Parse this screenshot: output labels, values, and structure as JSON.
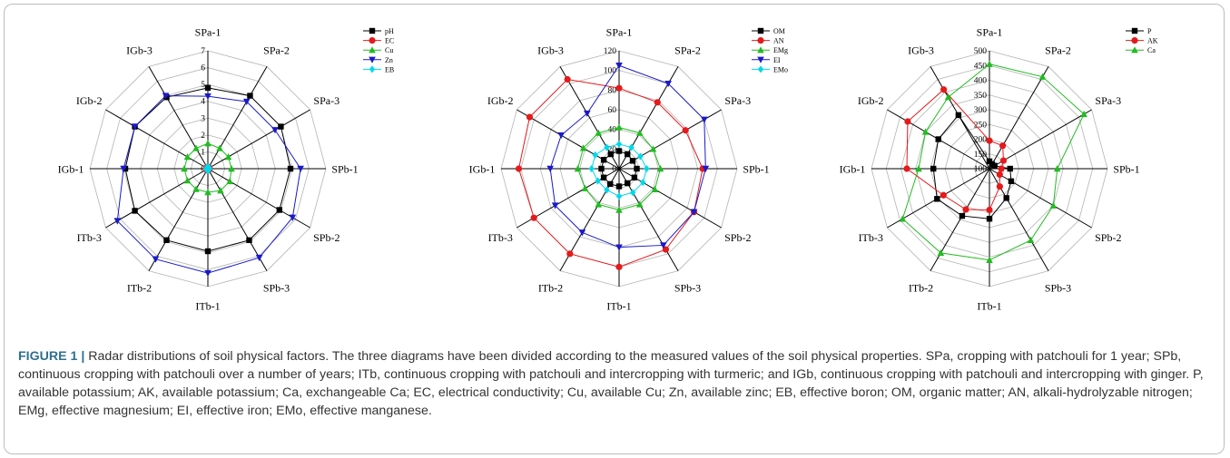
{
  "chart_data": [
    {
      "type": "radar",
      "categories": [
        "SPa-1",
        "SPa-2",
        "SPa-3",
        "SPb-1",
        "SPb-2",
        "SPb-3",
        "ITb-1",
        "ITb-2",
        "ITb-3",
        "IGb-1",
        "IGb-2",
        "IGb-3"
      ],
      "rlim": [
        0,
        7
      ],
      "ticks": [
        "0",
        "1",
        "2",
        "3",
        "4",
        "5",
        "6",
        "7"
      ],
      "legend": "top-right",
      "series": [
        {
          "name": "pH",
          "color": "#000000",
          "marker": "square",
          "values": [
            4.8,
            5.0,
            5.0,
            4.9,
            4.9,
            4.9,
            4.9,
            4.9,
            5.0,
            4.9,
            5.0,
            4.9
          ]
        },
        {
          "name": "EC",
          "color": "#e41a1c",
          "marker": "circle",
          "values": [
            0.1,
            0.1,
            0.1,
            0.1,
            0.1,
            0.1,
            0.1,
            0.1,
            0.1,
            0.1,
            0.1,
            0.1
          ]
        },
        {
          "name": "Cu",
          "color": "#22bb22",
          "marker": "triangle",
          "values": [
            1.5,
            1.4,
            1.4,
            1.4,
            1.5,
            1.5,
            1.4,
            1.4,
            1.4,
            1.4,
            1.4,
            1.4
          ]
        },
        {
          "name": "Zn",
          "color": "#1a1ac8",
          "marker": "triangle-down",
          "values": [
            4.3,
            4.6,
            4.6,
            5.5,
            5.8,
            6.1,
            6.2,
            6.2,
            6.2,
            5.0,
            5.0,
            5.0
          ]
        },
        {
          "name": "EB",
          "color": "#00d8e8",
          "marker": "diamond",
          "values": [
            0.1,
            0.1,
            0.1,
            0.1,
            0.1,
            0.1,
            0.1,
            0.1,
            0.1,
            0.1,
            0.1,
            0.1
          ]
        }
      ]
    },
    {
      "type": "radar",
      "categories": [
        "SPa-1",
        "SPa-2",
        "SPa-3",
        "SPb-1",
        "SPb-2",
        "SPb-3",
        "ITb-1",
        "ITb-2",
        "ITb-3",
        "IGb-1",
        "IGb-2",
        "IGb-3"
      ],
      "rlim": [
        0,
        120
      ],
      "ticks": [
        "0",
        "20",
        "40",
        "60",
        "80",
        "100",
        "120"
      ],
      "legend": "top-right",
      "series": [
        {
          "name": "OM",
          "color": "#000000",
          "marker": "square",
          "values": [
            18,
            17,
            16,
            18,
            18,
            17,
            18,
            18,
            18,
            18,
            18,
            17
          ]
        },
        {
          "name": "AN",
          "color": "#e41a1c",
          "marker": "circle",
          "values": [
            82,
            78,
            78,
            85,
            88,
            95,
            100,
            100,
            100,
            102,
            105,
            105
          ]
        },
        {
          "name": "EMg",
          "color": "#22bb22",
          "marker": "triangle",
          "values": [
            42,
            42,
            40,
            42,
            42,
            42,
            42,
            42,
            40,
            42,
            42,
            42
          ]
        },
        {
          "name": "EI",
          "color": "#1a1ac8",
          "marker": "triangle-down",
          "values": [
            105,
            100,
            100,
            88,
            88,
            90,
            80,
            75,
            75,
            70,
            68,
            65
          ]
        },
        {
          "name": "EMo",
          "color": "#00d8e8",
          "marker": "diamond",
          "values": [
            25,
            25,
            25,
            28,
            28,
            28,
            28,
            25,
            25,
            28,
            28,
            25
          ]
        }
      ]
    },
    {
      "type": "radar",
      "categories": [
        "SPa-1",
        "SPa-2",
        "SPa-3",
        "SPb-1",
        "SPb-2",
        "SPb-3",
        "ITb-1",
        "ITb-2",
        "ITb-3",
        "IGb-1",
        "IGb-2",
        "IGb-3"
      ],
      "rlim": [
        100,
        500
      ],
      "ticks": [
        "100",
        "150",
        "200",
        "250",
        "300",
        "350",
        "400",
        "450",
        "500"
      ],
      "legend": "top-right",
      "series": [
        {
          "name": "P",
          "color": "#000000",
          "marker": "square",
          "values": [
            125,
            118,
            120,
            170,
            185,
            215,
            270,
            285,
            305,
            290,
            300,
            310
          ]
        },
        {
          "name": "AK",
          "color": "#e41a1c",
          "marker": "circle",
          "values": [
            195,
            190,
            155,
            140,
            140,
            170,
            240,
            260,
            280,
            380,
            420,
            410
          ]
        },
        {
          "name": "Ca",
          "color": "#22bb22",
          "marker": "triangle",
          "values": [
            455,
            460,
            470,
            330,
            350,
            380,
            410,
            430,
            440,
            340,
            350,
            380
          ]
        }
      ]
    }
  ],
  "caption": {
    "label": "FIGURE 1 |",
    "text": " Radar distributions of soil physical factors. The three diagrams have been divided according to the measured values of the soil physical properties. SPa, cropping with patchouli for 1 year; SPb, continuous cropping with patchouli over a number of years; ITb, continuous cropping with patchouli and intercropping with turmeric; and IGb, continuous cropping with patchouli and intercropping with ginger. P, available potassium; AK, available potassium; Ca, exchangeable Ca; EC, electrical conductivity; Cu, available Cu; Zn, available zinc; EB, effective boron; OM, organic matter; AN, alkali-hydrolyzable nitrogen; EMg, effective magnesium; EI, effective iron; EMo, effective manganese."
  }
}
